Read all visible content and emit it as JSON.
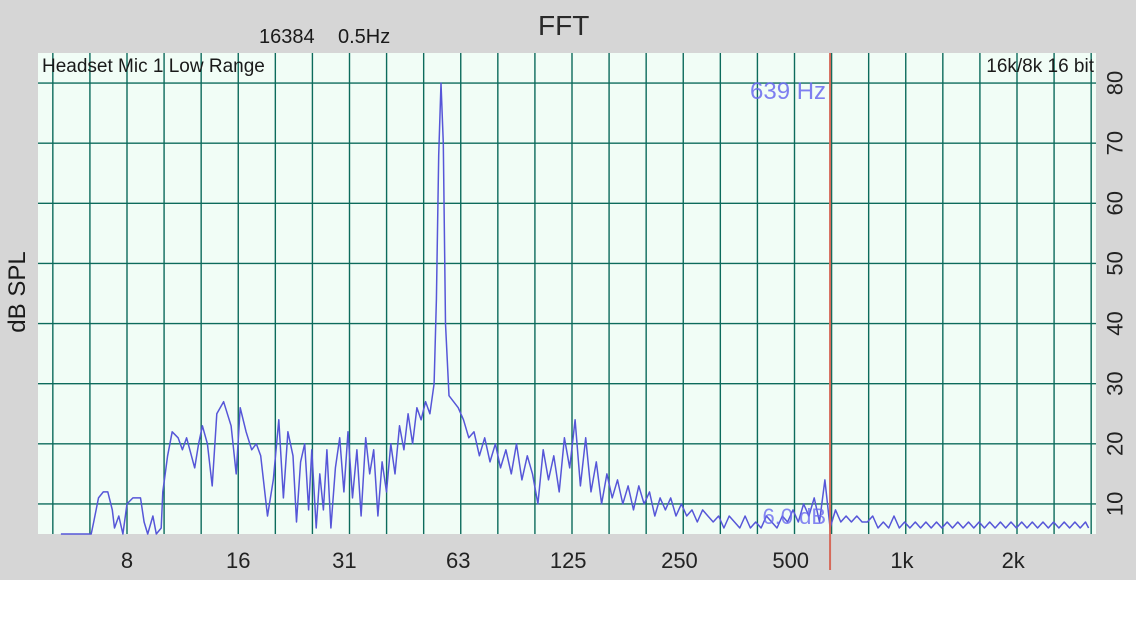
{
  "header": {
    "title": "FFT",
    "fft_size": "16384",
    "resolution": "0.5Hz"
  },
  "plot_labels": {
    "source": "Headset Mic 1 Low Range",
    "format": "16k/8k 16 bit",
    "cursor_freq": "639 Hz",
    "cursor_level": "6.0 dB"
  },
  "colors": {
    "page_background": "#d6d6d6",
    "plot_background": "#f1fdf6",
    "grid": "#0d6b5c",
    "trace": "#5656d8",
    "cursor": "#d66a5a",
    "overlay_text": "#6a6af0"
  },
  "chart_data": {
    "type": "line",
    "title": "FFT",
    "ylabel": "dB SPL",
    "xlabel": "",
    "x_scale": "log2",
    "xlim": [
      5.3,
      3200
    ],
    "ylim": [
      5,
      85
    ],
    "grid": true,
    "x_ticks": [
      {
        "value": 8,
        "label": "8"
      },
      {
        "value": 16,
        "label": "16"
      },
      {
        "value": 31,
        "label": "31"
      },
      {
        "value": 63,
        "label": "63"
      },
      {
        "value": 125,
        "label": "125"
      },
      {
        "value": 250,
        "label": "250"
      },
      {
        "value": 500,
        "label": "500"
      },
      {
        "value": 1000,
        "label": "1k"
      },
      {
        "value": 2000,
        "label": "2k"
      }
    ],
    "y_ticks": [
      10,
      20,
      30,
      40,
      50,
      60,
      70,
      80
    ],
    "cursor": {
      "x": 639,
      "y": 6.0
    },
    "series": [
      {
        "values": [
          [
            5.3,
            5
          ],
          [
            6.4,
            5
          ],
          [
            6.5,
            7
          ],
          [
            6.7,
            11
          ],
          [
            6.9,
            12
          ],
          [
            7.1,
            12
          ],
          [
            7.3,
            9
          ],
          [
            7.4,
            6
          ],
          [
            7.6,
            8
          ],
          [
            7.8,
            5
          ],
          [
            8.0,
            10
          ],
          [
            8.3,
            11
          ],
          [
            8.7,
            11
          ],
          [
            8.9,
            7
          ],
          [
            9.1,
            5
          ],
          [
            9.4,
            8
          ],
          [
            9.6,
            5
          ],
          [
            9.9,
            6
          ],
          [
            10.0,
            12
          ],
          [
            10.3,
            18
          ],
          [
            10.6,
            22
          ],
          [
            11.0,
            21
          ],
          [
            11.3,
            19
          ],
          [
            11.6,
            21
          ],
          [
            12.2,
            16
          ],
          [
            12.5,
            20
          ],
          [
            12.8,
            23
          ],
          [
            13.2,
            20
          ],
          [
            13.6,
            13
          ],
          [
            14.0,
            25
          ],
          [
            14.6,
            27
          ],
          [
            15.3,
            23
          ],
          [
            15.8,
            15
          ],
          [
            16.2,
            26
          ],
          [
            16.8,
            22
          ],
          [
            17.4,
            19
          ],
          [
            17.9,
            20
          ],
          [
            18.4,
            18
          ],
          [
            19.2,
            8
          ],
          [
            19.9,
            14
          ],
          [
            20.6,
            24
          ],
          [
            21.2,
            11
          ],
          [
            21.8,
            22
          ],
          [
            22.5,
            18
          ],
          [
            23.0,
            7
          ],
          [
            23.6,
            17
          ],
          [
            24.2,
            20
          ],
          [
            24.8,
            9
          ],
          [
            25.3,
            19
          ],
          [
            26.0,
            6
          ],
          [
            26.6,
            15
          ],
          [
            27.2,
            9
          ],
          [
            27.8,
            19
          ],
          [
            28.5,
            6
          ],
          [
            29.3,
            16
          ],
          [
            30.1,
            21
          ],
          [
            30.9,
            12
          ],
          [
            31.7,
            22
          ],
          [
            32.6,
            11
          ],
          [
            33.5,
            19
          ],
          [
            34.4,
            8
          ],
          [
            35.4,
            21
          ],
          [
            36.3,
            15
          ],
          [
            37.2,
            19
          ],
          [
            38.2,
            8
          ],
          [
            39.2,
            17
          ],
          [
            40.3,
            12
          ],
          [
            41.4,
            20
          ],
          [
            42.5,
            15
          ],
          [
            43.7,
            23
          ],
          [
            44.9,
            19
          ],
          [
            46.1,
            25
          ],
          [
            47.4,
            20
          ],
          [
            48.7,
            26
          ],
          [
            50.0,
            24
          ],
          [
            51.4,
            27
          ],
          [
            52.8,
            25
          ],
          [
            54.2,
            30
          ],
          [
            55.0,
            44
          ],
          [
            55.8,
            68
          ],
          [
            56.6,
            80
          ],
          [
            57.4,
            70
          ],
          [
            58.2,
            40
          ],
          [
            59.5,
            28
          ],
          [
            61.2,
            27
          ],
          [
            63.0,
            26
          ],
          [
            65.1,
            24
          ],
          [
            67.3,
            21
          ],
          [
            69.5,
            22
          ],
          [
            71.9,
            18
          ],
          [
            74.3,
            21
          ],
          [
            76.8,
            17
          ],
          [
            79.4,
            20
          ],
          [
            82.0,
            16
          ],
          [
            84.8,
            19
          ],
          [
            87.7,
            15
          ],
          [
            90.6,
            20
          ],
          [
            93.7,
            14
          ],
          [
            96.9,
            18
          ],
          [
            100.1,
            15
          ],
          [
            103.5,
            10
          ],
          [
            107.0,
            19
          ],
          [
            110.6,
            14
          ],
          [
            114.3,
            18
          ],
          [
            118.2,
            12
          ],
          [
            122.1,
            21
          ],
          [
            126.2,
            16
          ],
          [
            130.5,
            24
          ],
          [
            134.9,
            13
          ],
          [
            139.4,
            21
          ],
          [
            144.1,
            12
          ],
          [
            148.9,
            17
          ],
          [
            153.9,
            10
          ],
          [
            159.1,
            15
          ],
          [
            164.4,
            11
          ],
          [
            170.0,
            14
          ],
          [
            175.7,
            10
          ],
          [
            181.6,
            13
          ],
          [
            187.8,
            9
          ],
          [
            194.1,
            13
          ],
          [
            200.6,
            10
          ],
          [
            207.4,
            12
          ],
          [
            214.4,
            8
          ],
          [
            221.6,
            11
          ],
          [
            229.1,
            9
          ],
          [
            236.8,
            11
          ],
          [
            244.7,
            8
          ],
          [
            253.0,
            10
          ],
          [
            261.5,
            8
          ],
          [
            270.3,
            9
          ],
          [
            279.4,
            7
          ],
          [
            288.8,
            9
          ],
          [
            298.5,
            8
          ],
          [
            308.6,
            7
          ],
          [
            319.0,
            8
          ],
          [
            329.7,
            6
          ],
          [
            340.8,
            8
          ],
          [
            352.3,
            7
          ],
          [
            364.1,
            6
          ],
          [
            376.4,
            8
          ],
          [
            389.0,
            6
          ],
          [
            402.1,
            7
          ],
          [
            415.7,
            6
          ],
          [
            429.7,
            8
          ],
          [
            444.2,
            7
          ],
          [
            459.1,
            6
          ],
          [
            474.6,
            8
          ],
          [
            490.6,
            7
          ],
          [
            507.1,
            9
          ],
          [
            524.2,
            7
          ],
          [
            541.8,
            10
          ],
          [
            560.1,
            8
          ],
          [
            578.9,
            11
          ],
          [
            598.4,
            7
          ],
          [
            618.6,
            14
          ],
          [
            639.0,
            6
          ],
          [
            660.9,
            9
          ],
          [
            683.2,
            7
          ],
          [
            706.2,
            8
          ],
          [
            730.0,
            7
          ],
          [
            754.6,
            8
          ],
          [
            780.0,
            7
          ],
          [
            806.3,
            7
          ],
          [
            833.5,
            8
          ],
          [
            861.5,
            6
          ],
          [
            890.6,
            7
          ],
          [
            920.6,
            6
          ],
          [
            951.6,
            8
          ],
          [
            983.7,
            6
          ],
          [
            1016.8,
            7
          ],
          [
            1051.1,
            6
          ],
          [
            1086.5,
            7
          ],
          [
            1123.1,
            6
          ],
          [
            1161.0,
            7
          ],
          [
            1200.1,
            6
          ],
          [
            1240.6,
            7
          ],
          [
            1282.4,
            6
          ],
          [
            1325.6,
            7
          ],
          [
            1370.3,
            6
          ],
          [
            1416.5,
            7
          ],
          [
            1464.2,
            6
          ],
          [
            1513.6,
            7
          ],
          [
            1564.6,
            6
          ],
          [
            1617.3,
            7
          ],
          [
            1671.9,
            6
          ],
          [
            1728.2,
            7
          ],
          [
            1786.5,
            6
          ],
          [
            1846.7,
            7
          ],
          [
            1908.9,
            6
          ],
          [
            1973.3,
            7
          ],
          [
            2039.8,
            6
          ],
          [
            2108.6,
            7
          ],
          [
            2179.7,
            6
          ],
          [
            2253.1,
            7
          ],
          [
            2329.1,
            6
          ],
          [
            2407.6,
            7
          ],
          [
            2488.7,
            6
          ],
          [
            2572.6,
            7
          ],
          [
            2659.3,
            6
          ],
          [
            2749.0,
            7
          ],
          [
            2841.6,
            6
          ],
          [
            2937.4,
            7
          ],
          [
            3036.4,
            6
          ],
          [
            3138.8,
            7
          ],
          [
            3200.0,
            6
          ]
        ]
      }
    ]
  }
}
